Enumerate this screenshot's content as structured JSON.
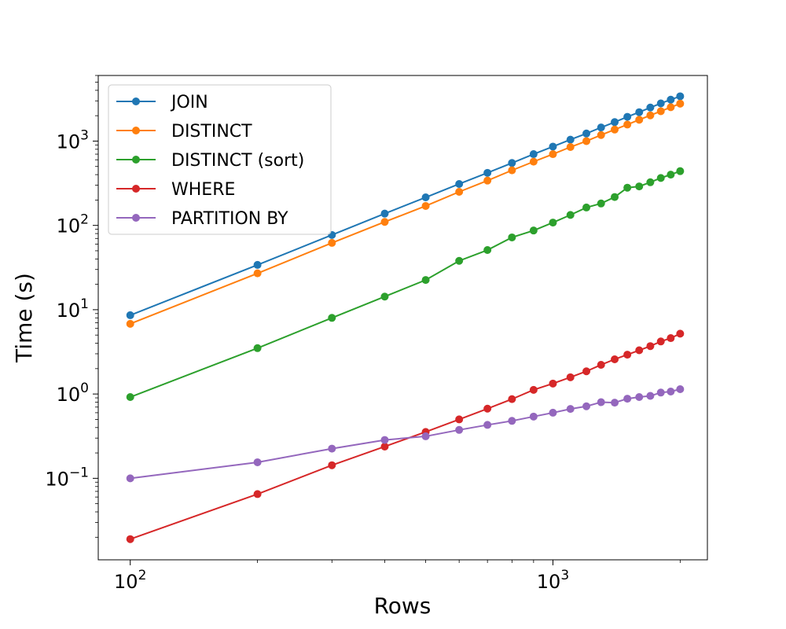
{
  "chart_data": {
    "type": "line",
    "title": "",
    "xlabel": "Rows",
    "ylabel": "Time (s)",
    "xscale": "log",
    "yscale": "log",
    "xlim": [
      84,
      2320
    ],
    "ylim": [
      0.0108,
      6000
    ],
    "grid": false,
    "legend_position": "top-left",
    "x_ticks": [
      {
        "value": 100,
        "base": "10",
        "exp": "2"
      },
      {
        "value": 1000,
        "base": "10",
        "exp": "3"
      }
    ],
    "y_ticks": [
      {
        "value": 0.1,
        "base": "10",
        "exp": "−1"
      },
      {
        "value": 1,
        "base": "10",
        "exp": "0"
      },
      {
        "value": 10,
        "base": "10",
        "exp": "1"
      },
      {
        "value": 100,
        "base": "10",
        "exp": "2"
      },
      {
        "value": 1000,
        "base": "10",
        "exp": "3"
      }
    ],
    "x": [
      100,
      200,
      300,
      400,
      500,
      600,
      700,
      800,
      900,
      1000,
      1100,
      1200,
      1300,
      1400,
      1500,
      1600,
      1700,
      1800,
      1900,
      2000
    ],
    "series": [
      {
        "name": "JOIN",
        "color": "#1f77b4",
        "values": [
          8.6,
          34,
          77,
          138,
          215,
          310,
          420,
          550,
          700,
          860,
          1040,
          1230,
          1450,
          1680,
          1940,
          2200,
          2500,
          2800,
          3100,
          3400
        ]
      },
      {
        "name": "DISTINCT",
        "color": "#ff7f0e",
        "values": [
          6.8,
          27,
          62,
          110,
          170,
          250,
          340,
          450,
          570,
          700,
          850,
          1000,
          1180,
          1370,
          1570,
          1790,
          2020,
          2260,
          2520,
          2780
        ]
      },
      {
        "name": "DISTINCT (sort)",
        "color": "#2ca02c",
        "values": [
          0.92,
          3.5,
          8.0,
          14.3,
          22.5,
          38,
          51,
          72,
          87,
          108,
          133,
          163,
          182,
          217,
          280,
          290,
          325,
          365,
          400,
          440
        ]
      },
      {
        "name": "WHERE",
        "color": "#d62728",
        "values": [
          0.019,
          0.065,
          0.143,
          0.238,
          0.355,
          0.5,
          0.67,
          0.87,
          1.12,
          1.33,
          1.58,
          1.86,
          2.22,
          2.58,
          2.93,
          3.3,
          3.7,
          4.2,
          4.6,
          5.2
        ]
      },
      {
        "name": "PARTITION BY",
        "color": "#9467bd",
        "values": [
          0.1,
          0.155,
          0.225,
          0.285,
          0.315,
          0.375,
          0.43,
          0.48,
          0.54,
          0.6,
          0.665,
          0.715,
          0.8,
          0.79,
          0.88,
          0.92,
          0.95,
          1.04,
          1.07,
          1.14
        ]
      }
    ]
  }
}
